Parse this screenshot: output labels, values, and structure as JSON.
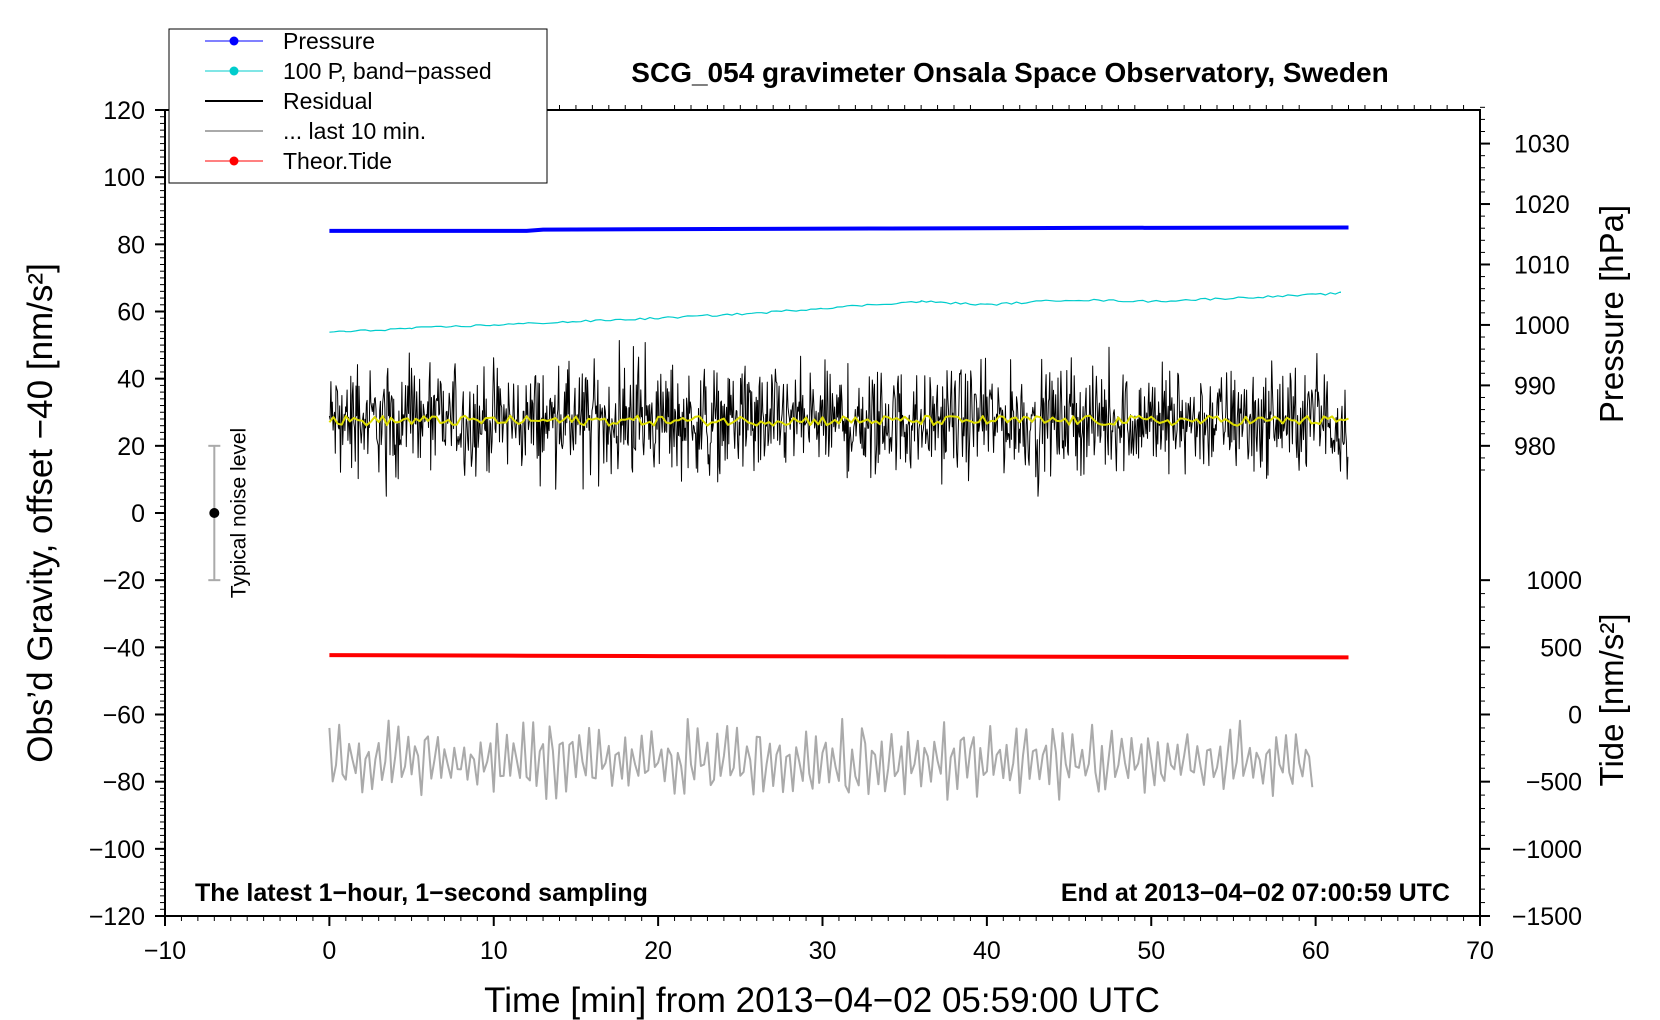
{
  "chart_data": {
    "type": "line",
    "title": "SCG_054 gravimeter Onsala Space Observatory, Sweden",
    "xlabel": "Time [min] from 2013−04−02 05:59:00 UTC",
    "ylabel_left": "Obs’d Gravity, offset −40 [nm/s²]",
    "ylabel_right_top": "Pressure [hPa]",
    "ylabel_right_bottom": "Tide [nm/s²]",
    "xlim": [
      -10,
      70
    ],
    "ylim": [
      -120,
      120
    ],
    "x_ticks": [
      -10,
      0,
      10,
      20,
      30,
      40,
      50,
      60,
      70
    ],
    "x_tick_labels": [
      "−10",
      "0",
      "10",
      "20",
      "30",
      "40",
      "50",
      "60",
      "70"
    ],
    "y_ticks": [
      -120,
      -100,
      -80,
      -60,
      -40,
      -20,
      0,
      20,
      40,
      60,
      80,
      100,
      120
    ],
    "y_tick_labels": [
      "−120",
      "−100",
      "−80",
      "−60",
      "−40",
      "−20",
      "0",
      "20",
      "40",
      "60",
      "80",
      "100",
      "120"
    ],
    "pressure_axis": {
      "ticks": [
        980,
        990,
        1000,
        1010,
        1020,
        1030
      ],
      "tick_labels": [
        "980",
        "990",
        "1000",
        "1010",
        "1020",
        "1030"
      ],
      "left_value_at_980": 20,
      "left_value_per_hpa": 1.8
    },
    "tide_axis": {
      "ticks": [
        -1500,
        -1000,
        -500,
        0,
        500,
        1000
      ],
      "tick_labels": [
        "−1500",
        "−1000",
        "−500",
        "0",
        "500",
        "1000"
      ],
      "left_value_at_0": -60,
      "left_value_per_unit": 0.04
    },
    "legend": {
      "placement": "top-left",
      "entries": [
        {
          "label": "Pressure",
          "color": "#0000ff",
          "marker": true
        },
        {
          "label": "100 P, band−passed",
          "color": "#00cccc",
          "marker": true
        },
        {
          "label": "Residual",
          "color": "#000000",
          "marker": false
        },
        {
          "label": "... last 10 min.",
          "color": "#aaaaaa",
          "marker": false
        },
        {
          "label": "Theor.Tide",
          "color": "#ff0000",
          "marker": true
        }
      ]
    },
    "series": [
      {
        "name": "Pressure",
        "color": "#0000ff",
        "x": [
          0,
          12,
          13,
          26,
          33,
          46,
          62
        ],
        "y": [
          84,
          84,
          84.4,
          84.6,
          84.7,
          84.9,
          85
        ]
      },
      {
        "name": "100 P, band−passed",
        "color": "#00cccc",
        "x": [
          0,
          1,
          5,
          10,
          15,
          20,
          26,
          30,
          36,
          40,
          45,
          50,
          55,
          60,
          61.5
        ],
        "y": [
          54,
          54,
          55,
          56,
          57,
          58,
          59.5,
          61,
          63,
          62,
          63.5,
          63,
          64,
          65,
          65.5
        ]
      },
      {
        "name": "Residual",
        "color": "#000000",
        "x_range": [
          0,
          62
        ],
        "center": 27.5,
        "typical_amplitude": 10,
        "max": 52,
        "min": 5
      },
      {
        "name": "Residual (smoothed)",
        "color": "#dddd00",
        "x_range": [
          0,
          62
        ],
        "center": 27.5
      },
      {
        "name": "Theor.Tide",
        "color": "#ff0000",
        "x": [
          0,
          12,
          20,
          33,
          45,
          62
        ],
        "y": [
          -42.3,
          -42.5,
          -42.6,
          -42.7,
          -42.8,
          -43
        ]
      },
      {
        "name": "... last 10 min.",
        "color": "#aaaaaa",
        "x_range": [
          0,
          60
        ],
        "center": -74,
        "max": -55,
        "min": -93
      }
    ],
    "noise_level": {
      "x": -7,
      "y": 0,
      "ymin": -20,
      "ymax": 20,
      "label": "Typical noise level"
    },
    "annotations": {
      "bottom_left": "The latest 1−hour, 1−second sampling",
      "bottom_right": "End at 2013−04−02 07:00:59 UTC"
    }
  }
}
